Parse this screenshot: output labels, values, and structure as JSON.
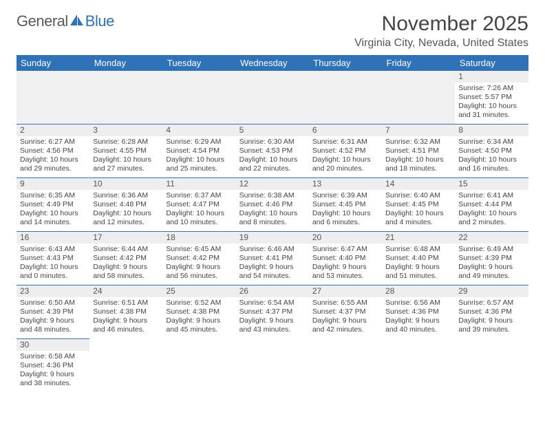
{
  "logo": {
    "text1": "General",
    "text2": "Blue"
  },
  "title": "November 2025",
  "location": "Virginia City, Nevada, United States",
  "colors": {
    "accent": "#2f72b8",
    "bg": "#ffffff",
    "text": "#444444"
  },
  "weekdays": [
    "Sunday",
    "Monday",
    "Tuesday",
    "Wednesday",
    "Thursday",
    "Friday",
    "Saturday"
  ],
  "weeks": [
    [
      null,
      null,
      null,
      null,
      null,
      null,
      {
        "n": "1",
        "sr": "Sunrise: 7:26 AM",
        "ss": "Sunset: 5:57 PM",
        "dl": "Daylight: 10 hours and 31 minutes."
      }
    ],
    [
      {
        "n": "2",
        "sr": "Sunrise: 6:27 AM",
        "ss": "Sunset: 4:56 PM",
        "dl": "Daylight: 10 hours and 29 minutes."
      },
      {
        "n": "3",
        "sr": "Sunrise: 6:28 AM",
        "ss": "Sunset: 4:55 PM",
        "dl": "Daylight: 10 hours and 27 minutes."
      },
      {
        "n": "4",
        "sr": "Sunrise: 6:29 AM",
        "ss": "Sunset: 4:54 PM",
        "dl": "Daylight: 10 hours and 25 minutes."
      },
      {
        "n": "5",
        "sr": "Sunrise: 6:30 AM",
        "ss": "Sunset: 4:53 PM",
        "dl": "Daylight: 10 hours and 22 minutes."
      },
      {
        "n": "6",
        "sr": "Sunrise: 6:31 AM",
        "ss": "Sunset: 4:52 PM",
        "dl": "Daylight: 10 hours and 20 minutes."
      },
      {
        "n": "7",
        "sr": "Sunrise: 6:32 AM",
        "ss": "Sunset: 4:51 PM",
        "dl": "Daylight: 10 hours and 18 minutes."
      },
      {
        "n": "8",
        "sr": "Sunrise: 6:34 AM",
        "ss": "Sunset: 4:50 PM",
        "dl": "Daylight: 10 hours and 16 minutes."
      }
    ],
    [
      {
        "n": "9",
        "sr": "Sunrise: 6:35 AM",
        "ss": "Sunset: 4:49 PM",
        "dl": "Daylight: 10 hours and 14 minutes."
      },
      {
        "n": "10",
        "sr": "Sunrise: 6:36 AM",
        "ss": "Sunset: 4:48 PM",
        "dl": "Daylight: 10 hours and 12 minutes."
      },
      {
        "n": "11",
        "sr": "Sunrise: 6:37 AM",
        "ss": "Sunset: 4:47 PM",
        "dl": "Daylight: 10 hours and 10 minutes."
      },
      {
        "n": "12",
        "sr": "Sunrise: 6:38 AM",
        "ss": "Sunset: 4:46 PM",
        "dl": "Daylight: 10 hours and 8 minutes."
      },
      {
        "n": "13",
        "sr": "Sunrise: 6:39 AM",
        "ss": "Sunset: 4:45 PM",
        "dl": "Daylight: 10 hours and 6 minutes."
      },
      {
        "n": "14",
        "sr": "Sunrise: 6:40 AM",
        "ss": "Sunset: 4:45 PM",
        "dl": "Daylight: 10 hours and 4 minutes."
      },
      {
        "n": "15",
        "sr": "Sunrise: 6:41 AM",
        "ss": "Sunset: 4:44 PM",
        "dl": "Daylight: 10 hours and 2 minutes."
      }
    ],
    [
      {
        "n": "16",
        "sr": "Sunrise: 6:43 AM",
        "ss": "Sunset: 4:43 PM",
        "dl": "Daylight: 10 hours and 0 minutes."
      },
      {
        "n": "17",
        "sr": "Sunrise: 6:44 AM",
        "ss": "Sunset: 4:42 PM",
        "dl": "Daylight: 9 hours and 58 minutes."
      },
      {
        "n": "18",
        "sr": "Sunrise: 6:45 AM",
        "ss": "Sunset: 4:42 PM",
        "dl": "Daylight: 9 hours and 56 minutes."
      },
      {
        "n": "19",
        "sr": "Sunrise: 6:46 AM",
        "ss": "Sunset: 4:41 PM",
        "dl": "Daylight: 9 hours and 54 minutes."
      },
      {
        "n": "20",
        "sr": "Sunrise: 6:47 AM",
        "ss": "Sunset: 4:40 PM",
        "dl": "Daylight: 9 hours and 53 minutes."
      },
      {
        "n": "21",
        "sr": "Sunrise: 6:48 AM",
        "ss": "Sunset: 4:40 PM",
        "dl": "Daylight: 9 hours and 51 minutes."
      },
      {
        "n": "22",
        "sr": "Sunrise: 6:49 AM",
        "ss": "Sunset: 4:39 PM",
        "dl": "Daylight: 9 hours and 49 minutes."
      }
    ],
    [
      {
        "n": "23",
        "sr": "Sunrise: 6:50 AM",
        "ss": "Sunset: 4:39 PM",
        "dl": "Daylight: 9 hours and 48 minutes."
      },
      {
        "n": "24",
        "sr": "Sunrise: 6:51 AM",
        "ss": "Sunset: 4:38 PM",
        "dl": "Daylight: 9 hours and 46 minutes."
      },
      {
        "n": "25",
        "sr": "Sunrise: 6:52 AM",
        "ss": "Sunset: 4:38 PM",
        "dl": "Daylight: 9 hours and 45 minutes."
      },
      {
        "n": "26",
        "sr": "Sunrise: 6:54 AM",
        "ss": "Sunset: 4:37 PM",
        "dl": "Daylight: 9 hours and 43 minutes."
      },
      {
        "n": "27",
        "sr": "Sunrise: 6:55 AM",
        "ss": "Sunset: 4:37 PM",
        "dl": "Daylight: 9 hours and 42 minutes."
      },
      {
        "n": "28",
        "sr": "Sunrise: 6:56 AM",
        "ss": "Sunset: 4:36 PM",
        "dl": "Daylight: 9 hours and 40 minutes."
      },
      {
        "n": "29",
        "sr": "Sunrise: 6:57 AM",
        "ss": "Sunset: 4:36 PM",
        "dl": "Daylight: 9 hours and 39 minutes."
      }
    ],
    [
      {
        "n": "30",
        "sr": "Sunrise: 6:58 AM",
        "ss": "Sunset: 4:36 PM",
        "dl": "Daylight: 9 hours and 38 minutes."
      },
      null,
      null,
      null,
      null,
      null,
      null
    ]
  ]
}
